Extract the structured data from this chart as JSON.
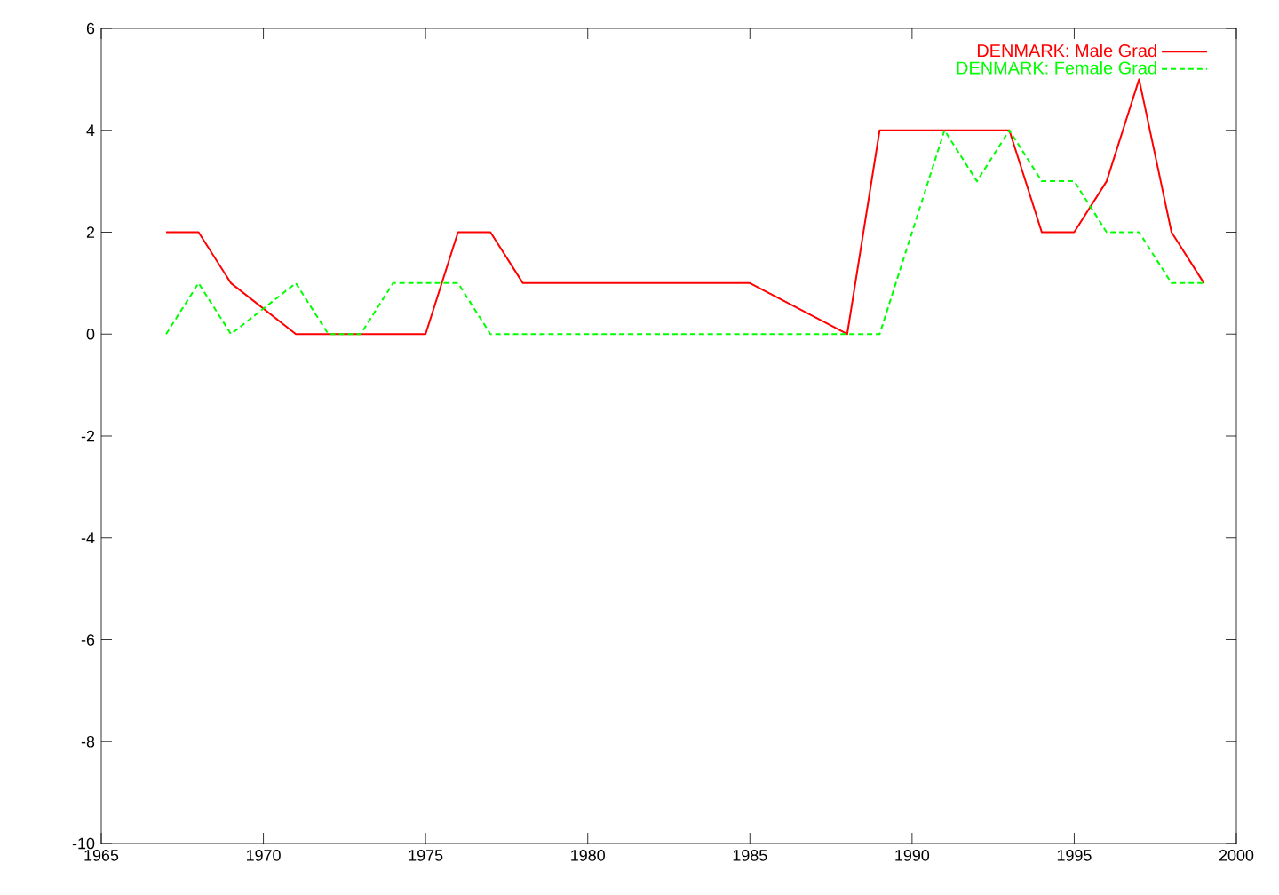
{
  "chart_data": {
    "type": "line",
    "xlim": [
      1965,
      2000
    ],
    "ylim": [
      -10,
      6
    ],
    "xticks": [
      1965,
      1970,
      1975,
      1980,
      1985,
      1990,
      1995,
      2000
    ],
    "yticks": [
      -10,
      -8,
      -6,
      -4,
      -2,
      0,
      2,
      4,
      6
    ],
    "legend": "top right",
    "grid": false,
    "marker": "none",
    "series": [
      {
        "name": "DENMARK: Male Grad",
        "color": "#ff0000",
        "line_style": "solid",
        "x": [
          1967,
          1968,
          1969,
          1971,
          1972,
          1973,
          1974,
          1975,
          1976,
          1977,
          1978,
          1985,
          1988,
          1989,
          1990,
          1991,
          1992,
          1993,
          1994,
          1995,
          1996,
          1997,
          1998,
          1999
        ],
        "values": [
          2,
          2,
          1,
          0,
          0,
          0,
          0,
          0,
          2,
          2,
          1,
          1,
          0,
          4,
          4,
          4,
          4,
          4,
          2,
          2,
          3,
          5,
          2,
          1
        ]
      },
      {
        "name": "DENMARK: Female Grad",
        "color": "#00ff00",
        "line_style": "dashed",
        "x": [
          1967,
          1968,
          1969,
          1971,
          1972,
          1973,
          1974,
          1975,
          1976,
          1977,
          1988,
          1989,
          1991,
          1992,
          1993,
          1994,
          1995,
          1996,
          1997,
          1998,
          1999
        ],
        "values": [
          0,
          1,
          0,
          1,
          0,
          0,
          1,
          1,
          1,
          0,
          0,
          0,
          4,
          3,
          4,
          3,
          3,
          2,
          2,
          1,
          1
        ]
      }
    ]
  }
}
